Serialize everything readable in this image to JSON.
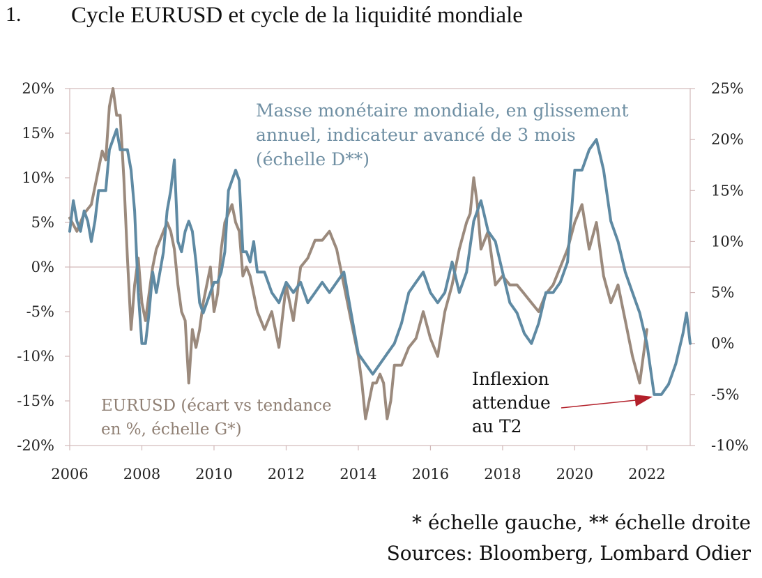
{
  "header": {
    "number": "1.",
    "title": "Cycle EURUSD et cycle de la liquidité mondiale"
  },
  "footer": {
    "line1": "* échelle gauche, ** échelle droite",
    "line2": "Sources: Bloomberg, Lombard Odier"
  },
  "colors": {
    "eurusd": "#9b8a7d",
    "liquidity": "#5f8aa3",
    "arrow": "#b3202a",
    "axis": "#d2b9b9"
  },
  "chart_data": {
    "type": "line",
    "title": "Cycle EURUSD et cycle de la liquidité mondiale",
    "x_ticks": [
      "2006",
      "2008",
      "2010",
      "2012",
      "2014",
      "2016",
      "2018",
      "2020",
      "2022"
    ],
    "y_left_ticks": [
      "20%",
      "15%",
      "10%",
      "5%",
      "0%",
      "-5%",
      "-10%",
      "-15%",
      "-20%"
    ],
    "y_right_ticks": [
      "25%",
      "20%",
      "15%",
      "10%",
      "5%",
      "0%",
      "-5%",
      "-10%"
    ],
    "ylim_left": [
      -20,
      20
    ],
    "ylim_right": [
      -10,
      25
    ],
    "xlim": [
      2006,
      2023.2
    ],
    "annotations": {
      "liquidity_lines": [
        "Masse monétaire mondiale, en glissement",
        "annuel, indicateur avancé de 3 mois",
        "(échelle D**)"
      ],
      "eurusd_lines": [
        "EURUSD (écart vs tendance",
        "en %, échelle G*)"
      ],
      "inflexion_lines": [
        "Inflexion",
        "attendue",
        "au T2"
      ]
    },
    "series": [
      {
        "name": "EURUSD (écart vs tendance en %, échelle G*)",
        "axis": "left",
        "x": [
          2006.0,
          2006.2,
          2006.4,
          2006.6,
          2006.8,
          2006.9,
          2007.0,
          2007.1,
          2007.2,
          2007.3,
          2007.4,
          2007.5,
          2007.6,
          2007.7,
          2007.8,
          2007.9,
          2008.0,
          2008.1,
          2008.2,
          2008.3,
          2008.4,
          2008.5,
          2008.6,
          2008.7,
          2008.8,
          2008.9,
          2009.0,
          2009.1,
          2009.2,
          2009.3,
          2009.4,
          2009.5,
          2009.6,
          2009.7,
          2009.8,
          2009.9,
          2010.0,
          2010.1,
          2010.2,
          2010.3,
          2010.4,
          2010.5,
          2010.6,
          2010.7,
          2010.8,
          2010.9,
          2011.0,
          2011.2,
          2011.4,
          2011.6,
          2011.8,
          2012.0,
          2012.2,
          2012.4,
          2012.6,
          2012.8,
          2013.0,
          2013.2,
          2013.4,
          2013.6,
          2013.8,
          2014.0,
          2014.1,
          2014.2,
          2014.3,
          2014.4,
          2014.5,
          2014.6,
          2014.7,
          2014.8,
          2014.9,
          2015.0,
          2015.2,
          2015.4,
          2015.6,
          2015.8,
          2016.0,
          2016.2,
          2016.4,
          2016.6,
          2016.8,
          2017.0,
          2017.1,
          2017.2,
          2017.3,
          2017.4,
          2017.6,
          2017.8,
          2018.0,
          2018.2,
          2018.4,
          2018.6,
          2018.8,
          2019.0,
          2019.2,
          2019.4,
          2019.6,
          2019.8,
          2020.0,
          2020.2,
          2020.4,
          2020.6,
          2020.8,
          2021.0,
          2021.2,
          2021.4,
          2021.6,
          2021.8,
          2021.9,
          2022.0
        ],
        "values": [
          5.5,
          4,
          6,
          7,
          11,
          13,
          12,
          18,
          20,
          17,
          17,
          10,
          1,
          -7,
          -2,
          1,
          -4,
          -6,
          -3,
          0,
          2,
          3,
          4,
          5,
          4,
          2,
          -2,
          -5,
          -6,
          -13,
          -7,
          -9,
          -7,
          -4,
          -2,
          0,
          -5,
          -3,
          2,
          5,
          6,
          7,
          5,
          4,
          -1,
          0,
          -1,
          -5,
          -7,
          -5,
          -9,
          -2,
          -6,
          0,
          1,
          3,
          3,
          4,
          2,
          -2,
          -6,
          -10,
          -13,
          -17,
          -15,
          -13,
          -13,
          -12,
          -13,
          -17,
          -15,
          -11,
          -11,
          -9,
          -8,
          -5,
          -8,
          -10,
          -5,
          -2,
          2,
          5,
          6,
          10,
          7,
          2,
          4,
          -2,
          -1,
          -2,
          -2,
          -3,
          -4,
          -5,
          -3,
          -2,
          0,
          2,
          5,
          7,
          2,
          5,
          -1,
          -4,
          -2,
          -6,
          -10,
          -13,
          -10,
          -7
        ],
        "color": "#9b8a7d"
      },
      {
        "name": "Masse monétaire mondiale, en glissement annuel, indicateur avancé de 3 mois (échelle D**)",
        "axis": "right",
        "x": [
          2006.0,
          2006.1,
          2006.2,
          2006.3,
          2006.4,
          2006.5,
          2006.6,
          2006.7,
          2006.8,
          2006.9,
          2007.0,
          2007.1,
          2007.2,
          2007.3,
          2007.4,
          2007.5,
          2007.6,
          2007.7,
          2007.8,
          2007.9,
          2008.0,
          2008.1,
          2008.2,
          2008.3,
          2008.4,
          2008.5,
          2008.6,
          2008.7,
          2008.8,
          2008.9,
          2009.0,
          2009.1,
          2009.2,
          2009.3,
          2009.4,
          2009.5,
          2009.6,
          2009.7,
          2009.8,
          2009.9,
          2010.0,
          2010.1,
          2010.2,
          2010.3,
          2010.4,
          2010.5,
          2010.6,
          2010.7,
          2010.8,
          2010.9,
          2011.0,
          2011.1,
          2011.2,
          2011.4,
          2011.6,
          2011.8,
          2012.0,
          2012.2,
          2012.4,
          2012.6,
          2012.8,
          2013.0,
          2013.2,
          2013.4,
          2013.6,
          2013.8,
          2014.0,
          2014.2,
          2014.4,
          2014.6,
          2014.8,
          2015.0,
          2015.2,
          2015.4,
          2015.6,
          2015.8,
          2016.0,
          2016.2,
          2016.4,
          2016.6,
          2016.8,
          2017.0,
          2017.2,
          2017.4,
          2017.6,
          2017.8,
          2018.0,
          2018.2,
          2018.4,
          2018.6,
          2018.8,
          2019.0,
          2019.2,
          2019.4,
          2019.6,
          2019.8,
          2020.0,
          2020.2,
          2020.4,
          2020.6,
          2020.8,
          2021.0,
          2021.2,
          2021.4,
          2021.6,
          2021.8,
          2022.0,
          2022.2,
          2022.4,
          2022.6,
          2022.8,
          2023.0,
          2023.1,
          2023.2
        ],
        "values": [
          11,
          14,
          12,
          11,
          13,
          12,
          10,
          12,
          15,
          15,
          15,
          19,
          20,
          21,
          19,
          19,
          19,
          17,
          13,
          5,
          0,
          0,
          3,
          7,
          5,
          7,
          9,
          13,
          15,
          18,
          10,
          9,
          11,
          12,
          11,
          8,
          4,
          3,
          4,
          5,
          6,
          6,
          7,
          9,
          15,
          16,
          17,
          16,
          9,
          9,
          8,
          10,
          7,
          7,
          5,
          4,
          6,
          5,
          6,
          4,
          5,
          6,
          5,
          6,
          7,
          3,
          -1,
          -2,
          -3,
          -2,
          -1,
          0,
          2,
          5,
          6,
          7,
          5,
          4,
          5,
          8,
          5,
          7,
          12,
          14,
          11,
          10,
          7,
          4,
          3,
          1,
          0,
          2,
          5,
          5,
          6,
          8,
          17,
          17,
          19,
          20,
          17,
          12,
          10,
          7,
          5,
          3,
          0,
          -5,
          -5,
          -4,
          -2,
          1,
          3,
          0
        ],
        "color": "#5f8aa3"
      }
    ]
  }
}
